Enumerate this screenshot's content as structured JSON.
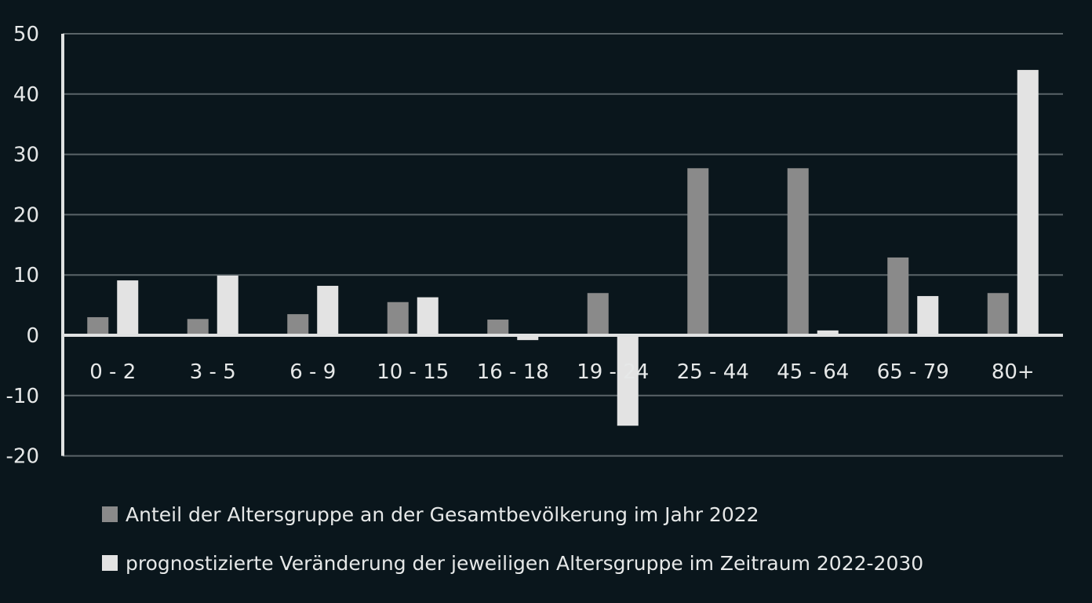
{
  "chart_data": {
    "type": "bar",
    "title": "",
    "xlabel": "",
    "ylabel": "",
    "ylim": [
      -20,
      50
    ],
    "yticks": [
      -20,
      -10,
      0,
      10,
      20,
      30,
      40,
      50
    ],
    "grid": true,
    "legend_placement": "bottom",
    "categories": [
      "0 - 2",
      "3 - 5",
      "6 - 9",
      "10 - 15",
      "16 - 18",
      "19 - 24",
      "25 - 44",
      "45 - 64",
      "65 - 79",
      "80+"
    ],
    "series": [
      {
        "name": "Anteil der Altersgruppe an der Gesamtbevölkerung im Jahr 2022",
        "color": "#8a8a8a",
        "values": [
          3.0,
          2.7,
          3.5,
          5.5,
          2.6,
          7.0,
          27.7,
          27.7,
          12.9,
          7.0
        ]
      },
      {
        "name": "prognostizierte Veränderung der jeweiligen Altersgruppe im Zeitraum 2022-2030",
        "color": "#e3e3e3",
        "values": [
          9.1,
          9.9,
          8.2,
          6.3,
          -0.8,
          -15.0,
          0,
          0.8,
          6.5,
          44.0
        ]
      }
    ]
  },
  "colors": {
    "background": "#0a161c",
    "grid": "#5a6468",
    "axis": "#e0e2e2"
  }
}
